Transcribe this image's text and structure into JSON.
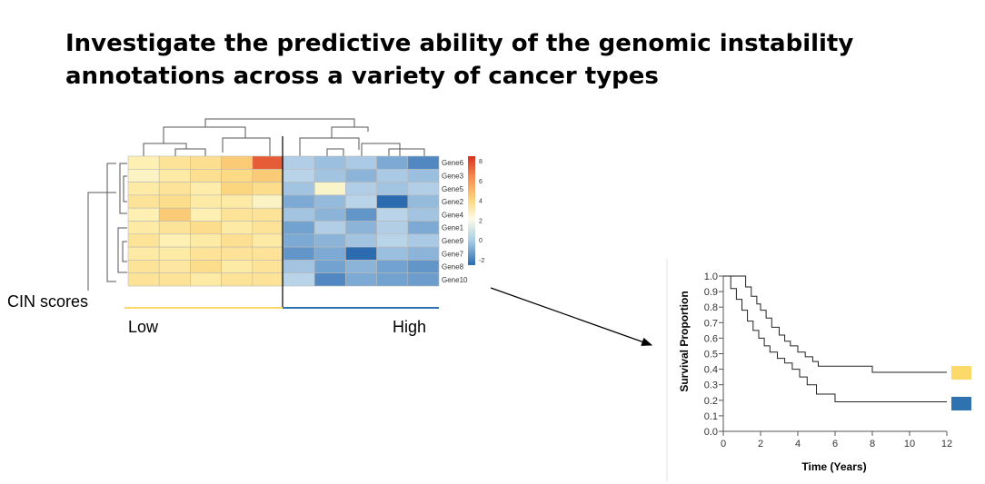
{
  "title": {
    "line1": "Investigate the predictive ability of the genomic instability",
    "line2": "annotations across a variety of cancer types"
  },
  "labels": {
    "cin": "CIN scores",
    "low": "Low",
    "high": "High"
  },
  "colors": {
    "low": "#fdd96a",
    "high": "#2e72b0",
    "line": "#000000"
  },
  "heatmap": {
    "genes": [
      "Gene6",
      "Gene3",
      "Gene5",
      "Gene2",
      "Gene4",
      "Gene1",
      "Gene9",
      "Gene7",
      "Gene8",
      "Gene10"
    ],
    "colorbar_ticks": [
      "8",
      "6",
      "4",
      "2",
      "0",
      "-2"
    ],
    "colorbar_range": [
      -2.5,
      8.5
    ],
    "values": [
      [
        2.5,
        3.5,
        3.8,
        4.8,
        7.5,
        -0.3,
        -0.6,
        -0.4,
        -1.0,
        -1.8
      ],
      [
        2.0,
        3.0,
        3.8,
        4.2,
        4.8,
        -0.2,
        -0.5,
        -0.8,
        -0.4,
        -0.6
      ],
      [
        3.0,
        3.5,
        2.8,
        4.5,
        4.0,
        -0.5,
        1.8,
        -0.3,
        -0.5,
        -0.3
      ],
      [
        3.5,
        4.0,
        3.0,
        3.0,
        2.0,
        -1.0,
        -0.7,
        -0.2,
        -2.6,
        -0.7
      ],
      [
        2.5,
        4.8,
        2.5,
        3.5,
        3.5,
        -0.5,
        -0.8,
        -1.5,
        -0.2,
        -0.5
      ],
      [
        3.0,
        3.5,
        4.0,
        3.0,
        3.5,
        -1.2,
        -0.3,
        -0.8,
        -0.3,
        -1.0
      ],
      [
        3.5,
        2.5,
        3.0,
        3.8,
        3.0,
        -1.0,
        -0.8,
        -0.5,
        -0.2,
        -0.4
      ],
      [
        3.0,
        3.0,
        3.5,
        3.5,
        3.5,
        -1.5,
        -1.0,
        -2.5,
        -0.6,
        -0.8
      ],
      [
        3.5,
        3.2,
        4.0,
        3.0,
        3.5,
        -0.5,
        -1.2,
        -0.8,
        -1.2,
        -1.5
      ],
      [
        3.5,
        3.5,
        3.0,
        3.5,
        3.5,
        -0.2,
        -1.8,
        -1.0,
        -1.2,
        -1.3
      ]
    ]
  },
  "chart_data": {
    "type": "line",
    "title": "",
    "xlabel": "Time (Years)",
    "ylabel": "Survival Proportion",
    "xlim": [
      0,
      12
    ],
    "ylim": [
      0,
      1.0
    ],
    "xticks": [
      0,
      2,
      4,
      6,
      8,
      10,
      12
    ],
    "yticks": [
      0.0,
      0.1,
      0.2,
      0.3,
      0.4,
      0.5,
      0.6,
      0.7,
      0.8,
      0.9,
      1.0
    ],
    "series": [
      {
        "color": "#fdd96a",
        "x": [
          0,
          1,
          1.2,
          1.5,
          1.8,
          2.0,
          2.3,
          2.6,
          3.0,
          3.3,
          3.6,
          4.0,
          4.4,
          4.8,
          5.1,
          8.0,
          12
        ],
        "y": [
          1.0,
          1.0,
          0.93,
          0.87,
          0.82,
          0.78,
          0.73,
          0.67,
          0.62,
          0.58,
          0.55,
          0.51,
          0.48,
          0.45,
          0.42,
          0.38,
          0.38
        ]
      },
      {
        "color": "#2e72b0",
        "x": [
          0,
          0.4,
          0.7,
          1.0,
          1.3,
          1.6,
          1.9,
          2.2,
          2.5,
          2.9,
          3.3,
          3.7,
          4.1,
          4.5,
          5.0,
          6.0,
          12
        ],
        "y": [
          1.0,
          0.92,
          0.85,
          0.78,
          0.71,
          0.65,
          0.6,
          0.55,
          0.51,
          0.47,
          0.44,
          0.4,
          0.35,
          0.3,
          0.24,
          0.19,
          0.19
        ]
      }
    ]
  }
}
